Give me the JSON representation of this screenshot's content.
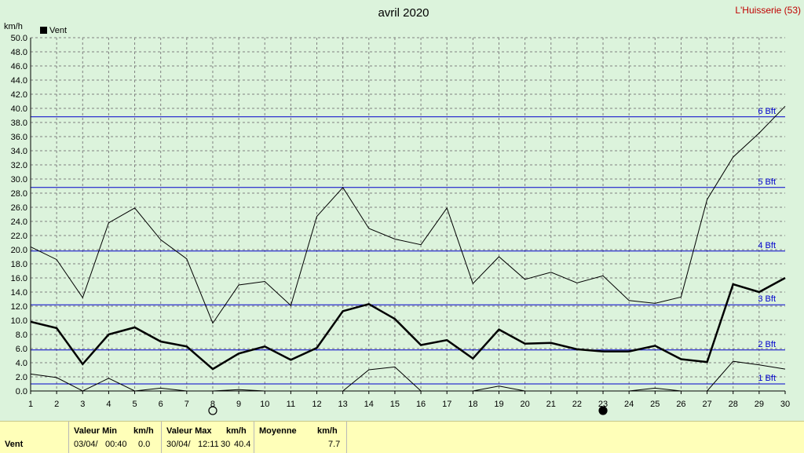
{
  "chart_data": {
    "type": "line",
    "title": "avril 2020",
    "station": "L'Huisserie (53)",
    "ylabel": "km/h",
    "legend": "Vent",
    "legend_position": "top-left",
    "grid": true,
    "xlim": [
      1,
      30
    ],
    "ylim": [
      0,
      50
    ],
    "x": [
      1,
      2,
      3,
      4,
      5,
      6,
      7,
      8,
      9,
      10,
      11,
      12,
      13,
      14,
      15,
      16,
      17,
      18,
      19,
      20,
      21,
      22,
      23,
      24,
      25,
      26,
      27,
      28,
      29,
      30
    ],
    "y_ticks": [
      "0.0",
      "2.0",
      "4.0",
      "6.0",
      "8.0",
      "10.0",
      "12.0",
      "14.0",
      "16.0",
      "18.0",
      "20.0",
      "22.0",
      "24.0",
      "26.0",
      "28.0",
      "30.0",
      "32.0",
      "34.0",
      "36.0",
      "38.0",
      "40.0",
      "42.0",
      "44.0",
      "46.0",
      "48.0",
      "50.0"
    ],
    "x_ticks": [
      "1",
      "2",
      "3",
      "4",
      "5",
      "6",
      "7",
      "8",
      "9",
      "10",
      "11",
      "12",
      "13",
      "14",
      "15",
      "16",
      "17",
      "18",
      "19",
      "20",
      "21",
      "22",
      "23",
      "24",
      "25",
      "26",
      "27",
      "28",
      "29",
      "30"
    ],
    "series": [
      {
        "name": "Vent",
        "role": "mean",
        "values": [
          9.8,
          8.9,
          3.8,
          8.0,
          9.0,
          7.0,
          6.3,
          3.1,
          5.3,
          6.3,
          4.4,
          6.1,
          11.3,
          12.3,
          10.2,
          6.5,
          7.2,
          4.6,
          8.7,
          6.7,
          6.8,
          5.9,
          5.6,
          5.6,
          6.4,
          4.5,
          4.1,
          15.1,
          14.0,
          16.0
        ]
      },
      {
        "role": "max",
        "values": [
          20.4,
          18.6,
          13.2,
          23.8,
          25.9,
          21.4,
          18.7,
          9.6,
          15.0,
          15.5,
          12.1,
          24.7,
          28.8,
          23.0,
          21.5,
          20.7,
          25.9,
          15.2,
          19.0,
          15.8,
          16.8,
          15.3,
          16.3,
          12.8,
          12.4,
          13.3,
          27.1,
          33.1,
          36.5,
          40.3
        ]
      },
      {
        "role": "min",
        "values": [
          2.4,
          1.9,
          0.0,
          1.8,
          0.0,
          0.4,
          0.0,
          0.0,
          0.2,
          0.0,
          0.0,
          0.0,
          0.0,
          3.0,
          3.4,
          0.0,
          0.0,
          0.0,
          0.7,
          0.0,
          0.0,
          0.0,
          0.0,
          0.0,
          0.4,
          0.0,
          0.0,
          4.2,
          3.7,
          3.1
        ]
      }
    ],
    "beaufort_lines": [
      {
        "label": "1 Bft",
        "value": 1.0
      },
      {
        "label": "2 Bft",
        "value": 5.8
      },
      {
        "label": "3 Bft",
        "value": 12.2
      },
      {
        "label": "4 Bft",
        "value": 19.8
      },
      {
        "label": "5 Bft",
        "value": 28.8
      },
      {
        "label": "6 Bft",
        "value": 38.8
      }
    ],
    "moon_phases": [
      {
        "day": 8,
        "phase": "full"
      },
      {
        "day": 23,
        "phase": "new"
      }
    ]
  },
  "footer": {
    "row_label": "Vent",
    "min": {
      "header": "Valeur Min",
      "unit": "km/h",
      "date": "03/04/",
      "time": "00:40",
      "value": "0.0"
    },
    "max": {
      "header": "Valeur Max",
      "unit": "km/h",
      "date": "30/04/",
      "time": "12:11",
      "time_suffix": "30",
      "value": "40.4"
    },
    "mean": {
      "header": "Moyenne",
      "unit": "km/h",
      "value": "7.7"
    }
  },
  "colors": {
    "background": "#dcf3dc",
    "grid": "#808080",
    "beaufort": "#0000cc",
    "series": "#000000",
    "station": "#c00000",
    "footer": "#ffffb9"
  }
}
